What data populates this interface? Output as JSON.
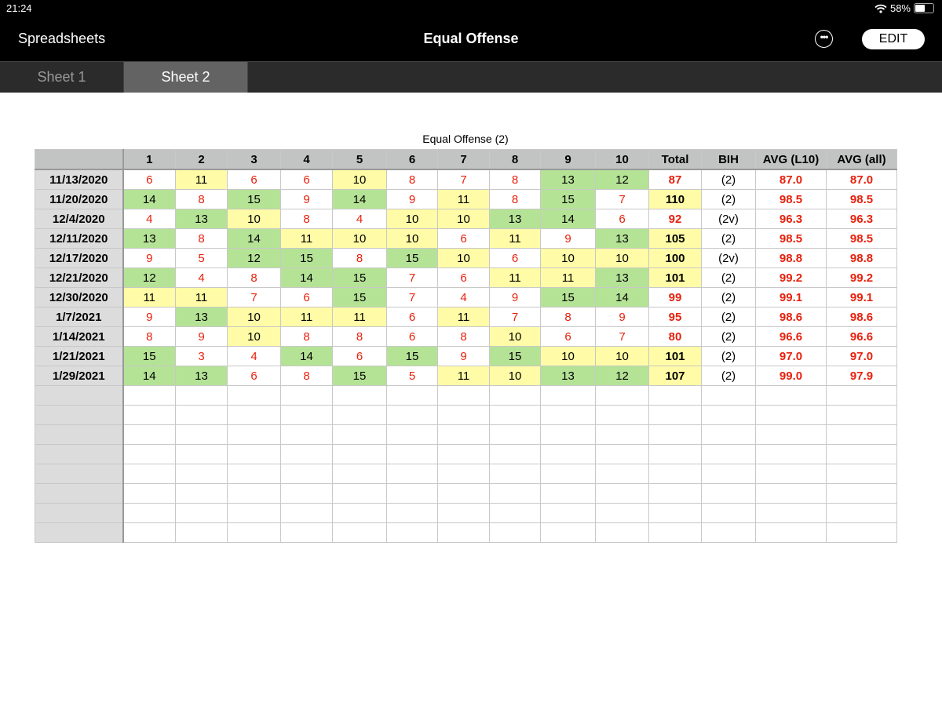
{
  "status_bar": {
    "time": "21:24",
    "battery": "58%",
    "battery_level": 0.58
  },
  "nav": {
    "back_label": "Spreadsheets",
    "title": "Equal Offense",
    "more_icon": "ellipsis-circle-icon",
    "edit_label": "EDIT"
  },
  "tabs": [
    {
      "label": "Sheet 1",
      "active": false
    },
    {
      "label": "Sheet 2",
      "active": true
    }
  ],
  "sheet": {
    "title": "Equal Offense (2)",
    "colors": {
      "red_text": "#e8200c",
      "yellow": "#fffba6",
      "green": "#b5e396",
      "header": "#c2c4c3"
    },
    "headers": [
      "",
      "1",
      "2",
      "3",
      "4",
      "5",
      "6",
      "7",
      "8",
      "9",
      "10",
      "Total",
      "BIH",
      "AVG (L10)",
      "AVG (all)"
    ],
    "rows": [
      {
        "date": "11/13/2020",
        "scores": [
          6,
          11,
          6,
          6,
          10,
          8,
          7,
          8,
          13,
          12
        ],
        "total": 87,
        "bih": "(2)",
        "avg_l10": "87.0",
        "avg_all": "87.0"
      },
      {
        "date": "11/20/2020",
        "scores": [
          14,
          8,
          15,
          9,
          14,
          9,
          11,
          8,
          15,
          7
        ],
        "total": 110,
        "bih": "(2)",
        "avg_l10": "98.5",
        "avg_all": "98.5"
      },
      {
        "date": "12/4/2020",
        "scores": [
          4,
          13,
          10,
          8,
          4,
          10,
          10,
          13,
          14,
          6
        ],
        "total": 92,
        "bih": "(2v)",
        "avg_l10": "96.3",
        "avg_all": "96.3"
      },
      {
        "date": "12/11/2020",
        "scores": [
          13,
          8,
          14,
          11,
          10,
          10,
          6,
          11,
          9,
          13
        ],
        "total": 105,
        "bih": "(2)",
        "avg_l10": "98.5",
        "avg_all": "98.5"
      },
      {
        "date": "12/17/2020",
        "scores": [
          9,
          5,
          12,
          15,
          8,
          15,
          10,
          6,
          10,
          10
        ],
        "total": 100,
        "bih": "(2v)",
        "avg_l10": "98.8",
        "avg_all": "98.8"
      },
      {
        "date": "12/21/2020",
        "scores": [
          12,
          4,
          8,
          14,
          15,
          7,
          6,
          11,
          11,
          13
        ],
        "total": 101,
        "bih": "(2)",
        "avg_l10": "99.2",
        "avg_all": "99.2"
      },
      {
        "date": "12/30/2020",
        "scores": [
          11,
          11,
          7,
          6,
          15,
          7,
          4,
          9,
          15,
          14
        ],
        "total": 99,
        "bih": "(2)",
        "avg_l10": "99.1",
        "avg_all": "99.1"
      },
      {
        "date": "1/7/2021",
        "scores": [
          9,
          13,
          10,
          11,
          11,
          6,
          11,
          7,
          8,
          9
        ],
        "total": 95,
        "bih": "(2)",
        "avg_l10": "98.6",
        "avg_all": "98.6"
      },
      {
        "date": "1/14/2021",
        "scores": [
          8,
          9,
          10,
          8,
          8,
          6,
          8,
          10,
          6,
          7
        ],
        "total": 80,
        "bih": "(2)",
        "avg_l10": "96.6",
        "avg_all": "96.6"
      },
      {
        "date": "1/21/2021",
        "scores": [
          15,
          3,
          4,
          14,
          6,
          15,
          9,
          15,
          10,
          10
        ],
        "total": 101,
        "bih": "(2)",
        "avg_l10": "97.0",
        "avg_all": "97.0"
      },
      {
        "date": "1/29/2021",
        "scores": [
          14,
          13,
          6,
          8,
          15,
          5,
          11,
          10,
          13,
          12
        ],
        "total": 107,
        "bih": "(2)",
        "avg_l10": "99.0",
        "avg_all": "97.9"
      }
    ],
    "empty_rows": 8
  }
}
